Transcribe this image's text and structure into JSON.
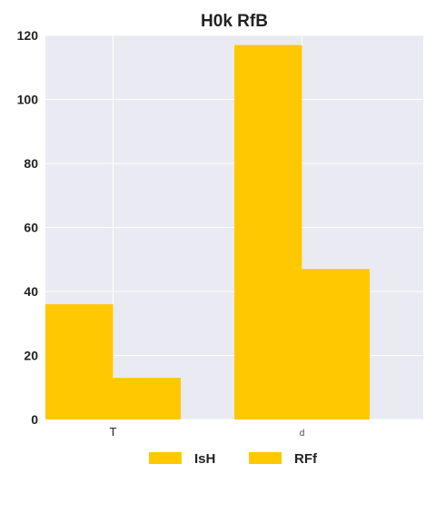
{
  "chart_data": {
    "type": "bar",
    "title": "H0k RfB",
    "xlabel": "",
    "ylabel": "",
    "categories": [
      "T",
      "d"
    ],
    "series": [
      {
        "name": "IsH",
        "values": [
          36,
          117
        ],
        "color": "#FFC800"
      },
      {
        "name": "RFf",
        "values": [
          13,
          47
        ],
        "color": "#FFC800"
      }
    ],
    "ylim": [
      0,
      120
    ],
    "yticks": [
      "0",
      "20",
      "40",
      "60",
      "80",
      "100",
      "120"
    ],
    "grid": true,
    "legend_position": "bottom",
    "background_color": "#EAEAF2",
    "grid_color": "#FFFFFF"
  }
}
